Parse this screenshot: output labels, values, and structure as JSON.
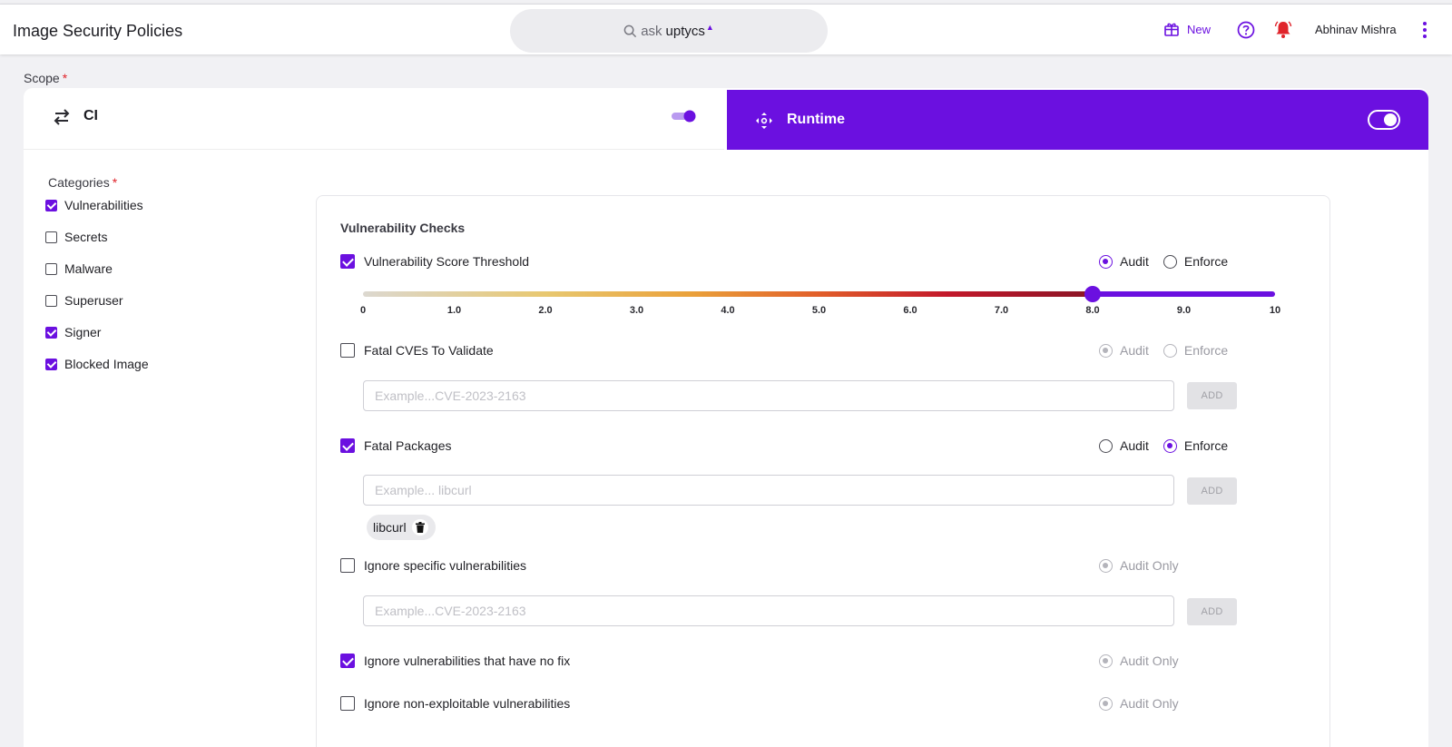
{
  "header": {
    "title": "Image Security Policies",
    "search": {
      "prefix": "ask",
      "brand": "uptycs",
      "brand_mark": "▲"
    },
    "new_label": "New",
    "user_name": "Abhinav Mishra"
  },
  "scope": {
    "label": "Scope",
    "required": "*",
    "tabs": [
      {
        "label": "CI",
        "enabled": true,
        "selected": false
      },
      {
        "label": "Runtime",
        "enabled": true,
        "selected": true
      }
    ]
  },
  "categories": {
    "title": "Categories",
    "required": "*",
    "items": [
      {
        "label": "Vulnerabilities",
        "checked": true
      },
      {
        "label": "Secrets",
        "checked": false
      },
      {
        "label": "Malware",
        "checked": false
      },
      {
        "label": "Superuser",
        "checked": false
      },
      {
        "label": "Signer",
        "checked": true
      },
      {
        "label": "Blocked Image",
        "checked": true
      }
    ]
  },
  "checks": {
    "title": "Vulnerability Checks",
    "score_threshold": {
      "label": "Vulnerability Score Threshold",
      "checked": true,
      "mode": "Audit",
      "value": 8.0,
      "min": 0,
      "max": 10,
      "ticks": [
        "0",
        "1.0",
        "2.0",
        "3.0",
        "4.0",
        "5.0",
        "6.0",
        "7.0",
        "8.0",
        "9.0",
        "10"
      ]
    },
    "fatal_cves": {
      "label": "Fatal CVEs To Validate",
      "checked": false,
      "mode": "Audit",
      "placeholder": "Example...CVE-2023-2163",
      "add_label": "ADD"
    },
    "fatal_packages": {
      "label": "Fatal Packages",
      "checked": true,
      "mode": "Enforce",
      "placeholder": "Example... libcurl",
      "add_label": "ADD",
      "chips": [
        "libcurl"
      ]
    },
    "ignore_specific": {
      "label": "Ignore specific vulnerabilities",
      "checked": false,
      "mode": "Audit Only",
      "placeholder": "Example...CVE-2023-2163",
      "add_label": "ADD"
    },
    "ignore_no_fix": {
      "label": "Ignore vulnerabilities that have no fix",
      "checked": true,
      "mode": "Audit Only"
    },
    "ignore_non_exploitable": {
      "label": "Ignore non-exploitable vulnerabilities",
      "checked": false,
      "mode": "Audit Only"
    }
  },
  "labels": {
    "audit": "Audit",
    "enforce": "Enforce",
    "audit_only": "Audit Only"
  },
  "colors": {
    "accent": "#6b10e0",
    "danger": "#e0242b"
  }
}
